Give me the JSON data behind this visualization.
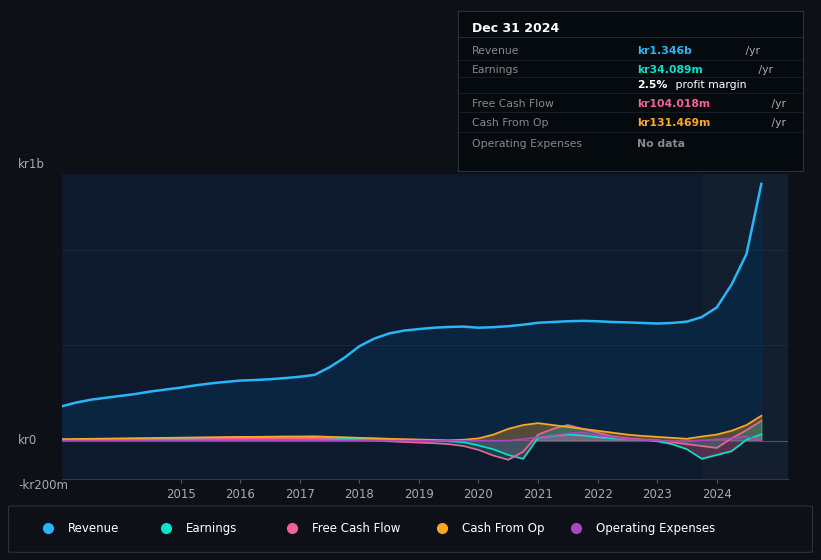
{
  "bg_color": "#0d1117",
  "chart_bg": "#0d1a2e",
  "grid_color": "#1e3050",
  "text_color": "#aaaaaa",
  "ylabel_top": "kr1b",
  "ylabel_bottom": "-kr200m",
  "ylabel_mid": "kr0",
  "x_ticks": [
    2015,
    2016,
    2017,
    2018,
    2019,
    2020,
    2021,
    2022,
    2023,
    2024
  ],
  "revenue_color": "#29b6f6",
  "earnings_color": "#00e5cc",
  "fcf_color": "#f06292",
  "cashop_color": "#ffa726",
  "opex_color": "#ab47bc",
  "legend_items": [
    "Revenue",
    "Earnings",
    "Free Cash Flow",
    "Cash From Op",
    "Operating Expenses"
  ],
  "legend_colors": [
    "#29b6f6",
    "#00e5cc",
    "#f06292",
    "#ffa726",
    "#ab47bc"
  ],
  "info_box_title": "Dec 31 2024",
  "info_rows": [
    {
      "label": "Revenue",
      "value": "kr1.346b",
      "suffix": " /yr",
      "value_color": "#29b6f6",
      "extra": ""
    },
    {
      "label": "Earnings",
      "value": "kr34.089m",
      "suffix": " /yr",
      "value_color": "#00e5cc",
      "extra": ""
    },
    {
      "label": "",
      "value": "2.5%",
      "suffix": " profit margin",
      "value_color": "#ffffff",
      "extra": "bold_pct"
    },
    {
      "label": "Free Cash Flow",
      "value": "kr104.018m",
      "suffix": " /yr",
      "value_color": "#f06292",
      "extra": ""
    },
    {
      "label": "Cash From Op",
      "value": "kr131.469m",
      "suffix": " /yr",
      "value_color": "#ffa726",
      "extra": ""
    },
    {
      "label": "Operating Expenses",
      "value": "No data",
      "suffix": "",
      "value_color": "#888888",
      "extra": ""
    }
  ],
  "years": [
    2013.0,
    2013.25,
    2013.5,
    2013.75,
    2014.0,
    2014.25,
    2014.5,
    2014.75,
    2015.0,
    2015.25,
    2015.5,
    2015.75,
    2016.0,
    2016.25,
    2016.5,
    2016.75,
    2017.0,
    2017.25,
    2017.5,
    2017.75,
    2018.0,
    2018.25,
    2018.5,
    2018.75,
    2019.0,
    2019.25,
    2019.5,
    2019.75,
    2020.0,
    2020.25,
    2020.5,
    2020.75,
    2021.0,
    2021.25,
    2021.5,
    2021.75,
    2022.0,
    2022.25,
    2022.5,
    2022.75,
    2023.0,
    2023.25,
    2023.5,
    2023.75,
    2024.0,
    2024.25,
    2024.5,
    2024.75
  ],
  "revenue": [
    180,
    200,
    215,
    225,
    235,
    245,
    258,
    268,
    278,
    290,
    300,
    308,
    315,
    318,
    322,
    328,
    335,
    345,
    385,
    435,
    495,
    535,
    562,
    577,
    585,
    592,
    596,
    598,
    592,
    595,
    600,
    608,
    618,
    622,
    626,
    628,
    626,
    622,
    620,
    617,
    614,
    617,
    624,
    648,
    698,
    818,
    978,
    1346
  ],
  "earnings": [
    5,
    6,
    7,
    8,
    8,
    9,
    10,
    11,
    12,
    13,
    14,
    15,
    15,
    16,
    16,
    17,
    17,
    18,
    15,
    12,
    10,
    8,
    5,
    3,
    2,
    1,
    -3,
    -8,
    -25,
    -45,
    -75,
    -95,
    15,
    25,
    32,
    27,
    18,
    12,
    8,
    5,
    -3,
    -18,
    -45,
    -95,
    -75,
    -55,
    5,
    34
  ],
  "fcf": [
    2,
    3,
    3,
    4,
    4,
    5,
    5,
    6,
    7,
    8,
    9,
    10,
    10,
    11,
    11,
    12,
    11,
    10,
    8,
    5,
    3,
    1,
    -3,
    -7,
    -10,
    -13,
    -18,
    -28,
    -48,
    -78,
    -100,
    -58,
    32,
    62,
    82,
    62,
    42,
    22,
    12,
    6,
    2,
    -8,
    -18,
    -28,
    -38,
    12,
    55,
    104
  ],
  "cashop": [
    8,
    9,
    10,
    11,
    12,
    13,
    14,
    15,
    16,
    17,
    18,
    19,
    20,
    20,
    21,
    22,
    22,
    23,
    20,
    18,
    15,
    13,
    10,
    8,
    6,
    4,
    2,
    5,
    12,
    32,
    62,
    82,
    92,
    82,
    72,
    62,
    52,
    42,
    32,
    25,
    20,
    15,
    10,
    22,
    32,
    52,
    82,
    131
  ],
  "opex": [
    0,
    0,
    0,
    0,
    0,
    0,
    0,
    0,
    0,
    0,
    0,
    0,
    0,
    0,
    0,
    0,
    0,
    0,
    0,
    0,
    0,
    0,
    0,
    0,
    0,
    0,
    0,
    0,
    0,
    0,
    0,
    8,
    18,
    28,
    38,
    43,
    28,
    18,
    8,
    4,
    1,
    -4,
    -4,
    2,
    6,
    12,
    22,
    0
  ],
  "ylim": [
    -200,
    1400
  ],
  "xlim": [
    2013.0,
    2025.2
  ]
}
